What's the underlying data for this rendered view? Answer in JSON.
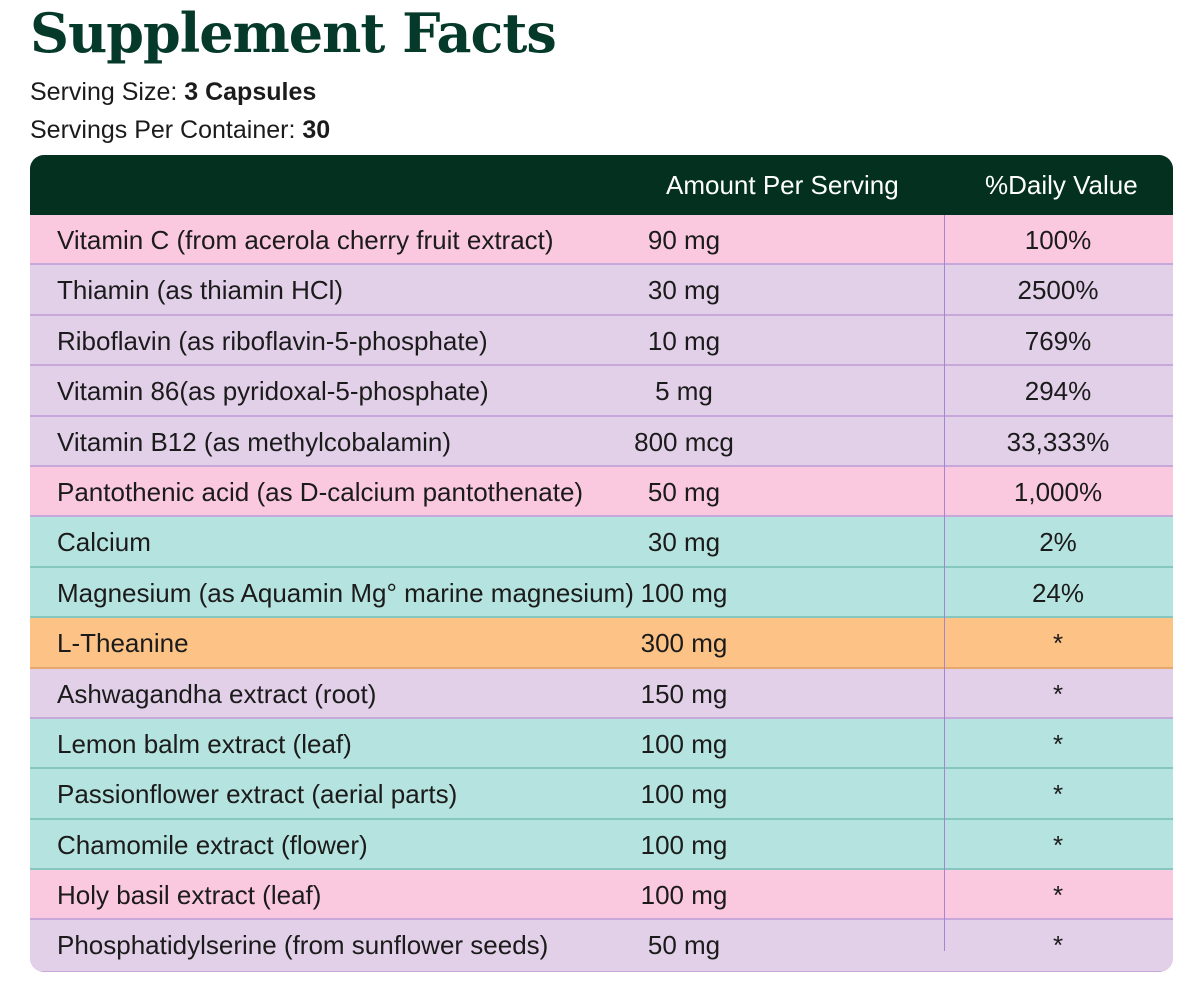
{
  "title": "Supplement Facts",
  "serving_size": {
    "label": "Serving Size: ",
    "value": "3 Capsules"
  },
  "servings_per_container": {
    "label": "Servings Per Container: ",
    "value": "30"
  },
  "table": {
    "headers": {
      "amount": "Amount Per Serving",
      "daily_value": "%Daily Value"
    },
    "colors": {
      "header": "#04311f",
      "pink": "#fbc9df",
      "lavender": "#e2d0e9",
      "teal": "#b5e3df",
      "orange": "#fcc286"
    },
    "rows": [
      {
        "name": "Vitamin C (from acerola cherry fruit extract)",
        "amount": "90 mg",
        "dv": "100%",
        "color": "pink"
      },
      {
        "name": "Thiamin (as thiamin HCl)",
        "amount": "30 mg",
        "dv": "2500%",
        "color": "lavender"
      },
      {
        "name": "Riboflavin (as riboflavin-5-phosphate)",
        "amount": "10 mg",
        "dv": "769%",
        "color": "lavender"
      },
      {
        "name": "Vitamin 86(as pyridoxal-5-phosphate)",
        "amount": "5 mg",
        "dv": "294%",
        "color": "lavender"
      },
      {
        "name": "Vitamin B12 (as methylcobalamin)",
        "amount": "800 mcg",
        "dv": "33,333%",
        "color": "lavender"
      },
      {
        "name": "Pantothenic acid (as D-calcium pantothenate)",
        "amount": "50 mg",
        "dv": "1,000%",
        "color": "pink"
      },
      {
        "name": "Calcium",
        "amount": "30 mg",
        "dv": "2%",
        "color": "teal"
      },
      {
        "name": "Magnesium (as Aquamin Mg° marine magnesium)",
        "amount": "100 mg",
        "dv": "24%",
        "color": "teal"
      },
      {
        "name": "L-Theanine",
        "amount": "300 mg",
        "dv": "*",
        "color": "orange"
      },
      {
        "name": "Ashwagandha extract (root)",
        "amount": "150 mg",
        "dv": "*",
        "color": "lavender"
      },
      {
        "name": "Lemon balm extract (leaf)",
        "amount": "100 mg",
        "dv": "*",
        "color": "teal"
      },
      {
        "name": "Passionflower extract (aerial parts)",
        "amount": "100 mg",
        "dv": "*",
        "color": "teal"
      },
      {
        "name": "Chamomile extract (flower)",
        "amount": "100 mg",
        "dv": "*",
        "color": "teal"
      },
      {
        "name": "Holy basil extract (leaf)",
        "amount": "100 mg",
        "dv": "*",
        "color": "pink"
      },
      {
        "name": "Phosphatidylserine (from sunflower seeds)",
        "amount": "50 mg",
        "dv": "*",
        "color": "lavender"
      }
    ]
  }
}
